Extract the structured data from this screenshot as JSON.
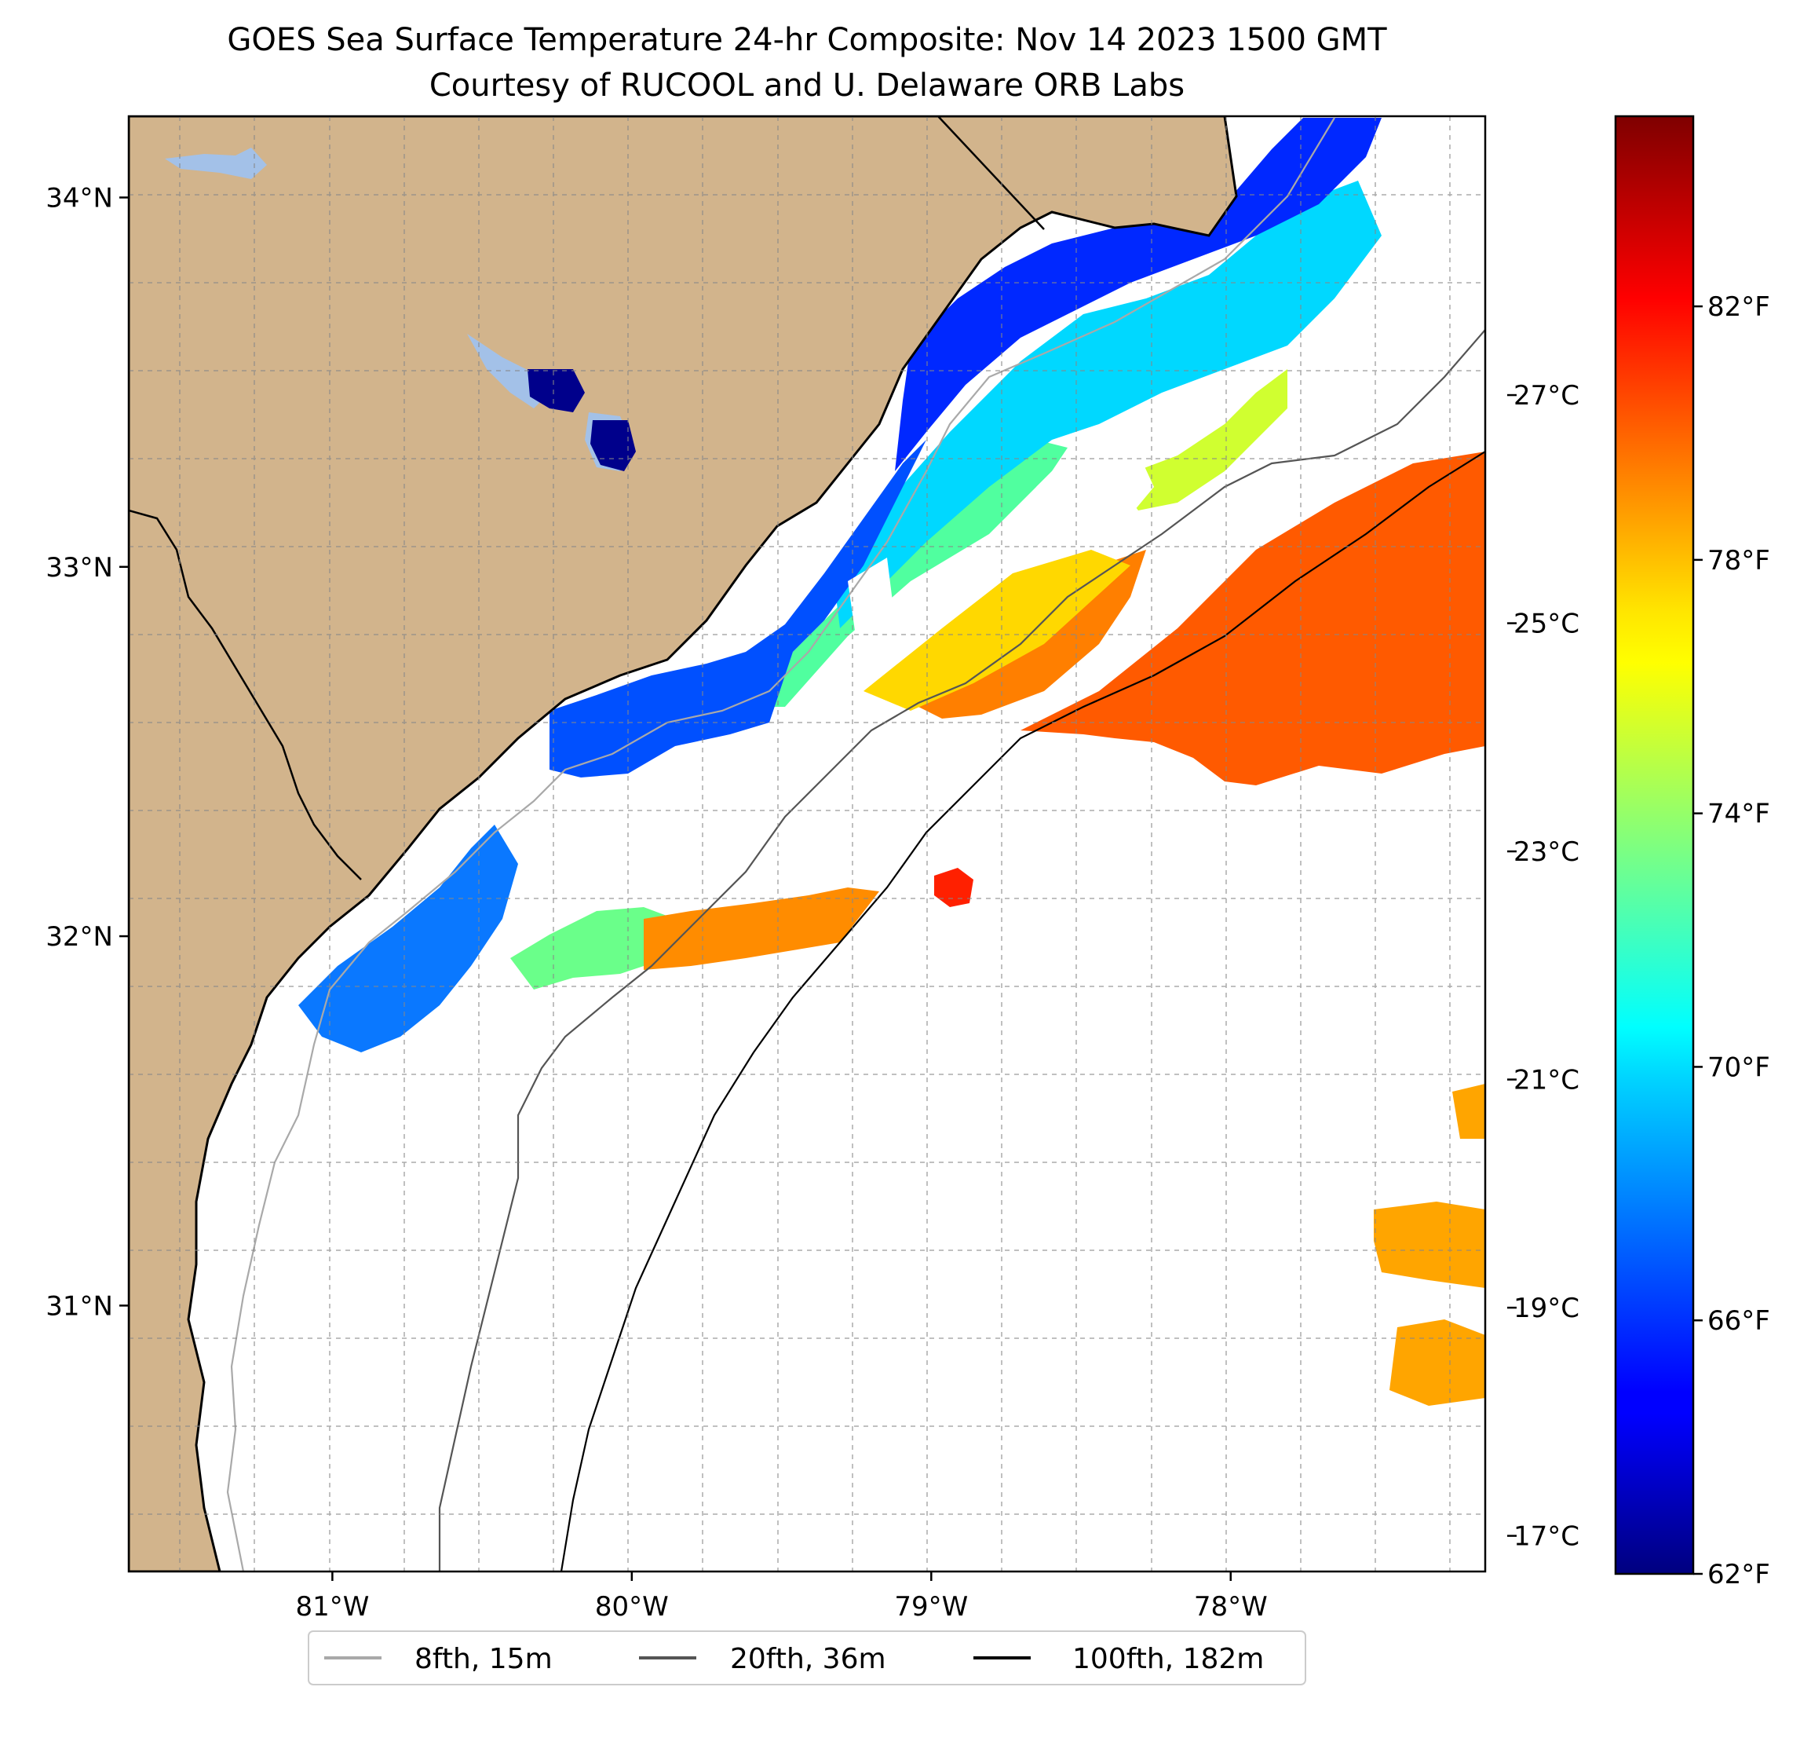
{
  "title": "GOES Sea Surface Temperature 24-hr Composite: Nov 14 2023 1500 GMT",
  "subtitle": "Courtesy of RUCOOL and U. Delaware ORB Labs",
  "map": {
    "lon_range": [
      -81.68,
      -77.15
    ],
    "lat_range": [
      30.28,
      34.22
    ],
    "lon_ticks": [
      {
        "value": -81,
        "label": "81°W"
      },
      {
        "value": -80,
        "label": "80°W"
      },
      {
        "value": -79,
        "label": "79°W"
      },
      {
        "value": -78,
        "label": "78°W"
      }
    ],
    "lat_ticks": [
      {
        "value": 34,
        "label": "34°N"
      },
      {
        "value": 33,
        "label": "33°N"
      },
      {
        "value": 32,
        "label": "32°N"
      },
      {
        "value": 31,
        "label": "31°N"
      }
    ],
    "gridlines": true,
    "land_color": "#d2b48c",
    "lake_color": "#a3c1e8",
    "ocean_color": "#ffffff"
  },
  "colorbar": {
    "colormap": "jet",
    "range_F": [
      62,
      85
    ],
    "f_ticks": [
      {
        "value": 62,
        "label": "62°F"
      },
      {
        "value": 66,
        "label": "66°F"
      },
      {
        "value": 70,
        "label": "70°F"
      },
      {
        "value": 74,
        "label": "74°F"
      },
      {
        "value": 78,
        "label": "78°F"
      },
      {
        "value": 82,
        "label": "82°F"
      }
    ],
    "c_ticks": [
      {
        "value": 17,
        "label": "17°C"
      },
      {
        "value": 19,
        "label": "19°C"
      },
      {
        "value": 21,
        "label": "21°C"
      },
      {
        "value": 23,
        "label": "23°C"
      },
      {
        "value": 25,
        "label": "25°C"
      },
      {
        "value": 27,
        "label": "27°C"
      }
    ]
  },
  "legend": {
    "placement": "bottom-center",
    "items": [
      {
        "label": "8fth, 15m",
        "color": "#a9a9a9"
      },
      {
        "label": "20fth, 36m",
        "color": "#555555"
      },
      {
        "label": "100fth, 182m",
        "color": "#000000"
      }
    ]
  }
}
